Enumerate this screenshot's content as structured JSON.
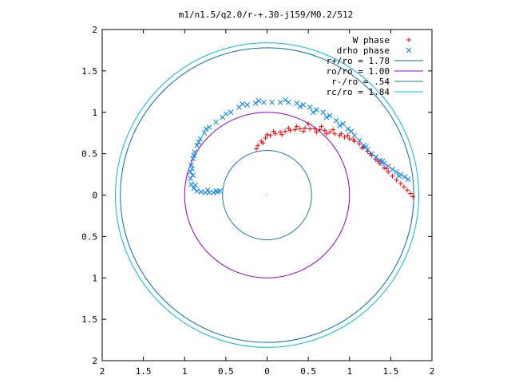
{
  "chart_data": {
    "type": "scatter",
    "title": "m1/n1.5/q2.0/r-+.30-j159/M0.2/512",
    "xlim": [
      2,
      -2
    ],
    "ylim": [
      -2,
      2
    ],
    "x_ticks": [
      "2",
      "1.5",
      "1",
      "0.5",
      "0",
      "0.5",
      "1",
      "1.5",
      "2"
    ],
    "y_ticks": [
      "2",
      "1.5",
      "1",
      "0.5",
      "0",
      "0.5",
      "1",
      "1.5",
      "2"
    ],
    "legend_position": "top-right",
    "series": [
      {
        "name": "W phase",
        "marker": "+",
        "color": "#ff0000",
        "points": [
          [
            -1.77,
            -0.02
          ],
          [
            -1.74,
            0.02
          ],
          [
            -1.7,
            0.06
          ],
          [
            -1.66,
            0.1
          ],
          [
            -1.62,
            0.14
          ],
          [
            -1.57,
            0.18
          ],
          [
            -1.52,
            0.23
          ],
          [
            -1.47,
            0.28
          ],
          [
            -1.42,
            0.33
          ],
          [
            -1.37,
            0.38
          ],
          [
            -1.32,
            0.43
          ],
          [
            -1.27,
            0.48
          ],
          [
            -1.22,
            0.53
          ],
          [
            -1.17,
            0.58
          ],
          [
            -1.12,
            0.62
          ],
          [
            -1.06,
            0.65
          ],
          [
            -1.0,
            0.68
          ],
          [
            -0.94,
            0.7
          ],
          [
            -0.88,
            0.72
          ],
          [
            -0.82,
            0.74
          ],
          [
            -0.76,
            0.76
          ],
          [
            -0.7,
            0.78
          ],
          [
            -0.64,
            0.79
          ],
          [
            -0.58,
            0.8
          ],
          [
            -0.52,
            0.8
          ],
          [
            -0.46,
            0.81
          ],
          [
            -0.4,
            0.8
          ],
          [
            -0.34,
            0.79
          ],
          [
            -0.28,
            0.78
          ],
          [
            -0.22,
            0.77
          ],
          [
            -0.16,
            0.76
          ],
          [
            -0.1,
            0.74
          ],
          [
            -0.04,
            0.72
          ],
          [
            0.02,
            0.69
          ],
          [
            0.07,
            0.65
          ],
          [
            0.11,
            0.6
          ],
          [
            0.13,
            0.56
          ],
          [
            -1.45,
            0.32
          ],
          [
            -1.35,
            0.41
          ],
          [
            -1.25,
            0.5
          ],
          [
            -1.15,
            0.57
          ],
          [
            -1.05,
            0.67
          ],
          [
            -0.98,
            0.72
          ],
          [
            -0.9,
            0.74
          ],
          [
            -0.8,
            0.79
          ],
          [
            -0.72,
            0.74
          ],
          [
            -0.66,
            0.83
          ],
          [
            -0.6,
            0.76
          ],
          [
            -0.5,
            0.86
          ],
          [
            -0.44,
            0.77
          ],
          [
            -0.36,
            0.83
          ],
          [
            -0.26,
            0.81
          ],
          [
            -0.18,
            0.73
          ],
          [
            -0.08,
            0.77
          ],
          [
            0.0,
            0.73
          ],
          [
            0.05,
            0.63
          ]
        ]
      },
      {
        "name": "drho phase",
        "marker": "x",
        "color": "#0080ff",
        "points": [
          [
            -1.71,
            0.19
          ],
          [
            -1.67,
            0.22
          ],
          [
            -1.62,
            0.25
          ],
          [
            -1.57,
            0.28
          ],
          [
            -1.52,
            0.31
          ],
          [
            -1.47,
            0.35
          ],
          [
            -1.42,
            0.38
          ],
          [
            -1.37,
            0.42
          ],
          [
            -1.32,
            0.46
          ],
          [
            -1.27,
            0.5
          ],
          [
            -1.22,
            0.55
          ],
          [
            -1.17,
            0.6
          ],
          [
            -1.12,
            0.66
          ],
          [
            -1.06,
            0.72
          ],
          [
            -0.98,
            0.8
          ],
          [
            -0.92,
            0.86
          ],
          [
            -0.84,
            0.9
          ],
          [
            -0.76,
            0.96
          ],
          [
            -0.68,
            1.0
          ],
          [
            -0.6,
            1.03
          ],
          [
            -0.52,
            1.06
          ],
          [
            -0.44,
            1.09
          ],
          [
            -0.36,
            1.11
          ],
          [
            -0.26,
            1.12
          ],
          [
            -0.16,
            1.12
          ],
          [
            -0.06,
            1.12
          ],
          [
            0.04,
            1.12
          ],
          [
            0.14,
            1.11
          ],
          [
            0.24,
            1.09
          ],
          [
            0.34,
            1.06
          ],
          [
            0.44,
            1.0
          ],
          [
            0.54,
            0.94
          ],
          [
            0.62,
            0.88
          ],
          [
            0.7,
            0.82
          ],
          [
            0.76,
            0.75
          ],
          [
            0.81,
            0.68
          ],
          [
            0.85,
            0.6
          ],
          [
            0.88,
            0.52
          ],
          [
            0.9,
            0.44
          ],
          [
            0.92,
            0.36
          ],
          [
            0.93,
            0.28
          ],
          [
            0.93,
            0.2
          ],
          [
            0.92,
            0.13
          ],
          [
            0.89,
            0.08
          ],
          [
            0.85,
            0.05
          ],
          [
            0.8,
            0.04
          ],
          [
            0.75,
            0.03
          ],
          [
            0.7,
            0.03
          ],
          [
            0.65,
            0.03
          ],
          [
            0.6,
            0.04
          ],
          [
            0.57,
            0.05
          ],
          [
            -1.6,
            0.23
          ],
          [
            -1.4,
            0.41
          ],
          [
            -1.2,
            0.58
          ],
          [
            -1.02,
            0.77
          ],
          [
            -0.88,
            0.84
          ],
          [
            -0.72,
            0.94
          ],
          [
            -0.56,
            1.0
          ],
          [
            -0.4,
            1.07
          ],
          [
            -0.22,
            1.15
          ],
          [
            0.1,
            1.14
          ],
          [
            0.3,
            1.1
          ],
          [
            0.5,
            0.98
          ],
          [
            0.74,
            0.8
          ],
          [
            0.83,
            0.64
          ],
          [
            0.89,
            0.48
          ],
          [
            0.91,
            0.32
          ],
          [
            0.9,
            0.24
          ],
          [
            0.87,
            0.12
          ],
          [
            0.72,
            0.06
          ],
          [
            0.62,
            0.05
          ]
        ]
      }
    ],
    "circles": [
      {
        "name": "r+/ro = 1.78",
        "radius": 1.78,
        "color": "#0072b2"
      },
      {
        "name": "ro/ro = 1.00",
        "radius": 1.0,
        "color": "#9400d3"
      },
      {
        "name": "r-/ro = .54",
        "radius": 0.54,
        "color": "#1f77b4"
      },
      {
        "name": "rc/ro = 1.84",
        "radius": 1.84,
        "color": "#00c0e0"
      }
    ]
  }
}
